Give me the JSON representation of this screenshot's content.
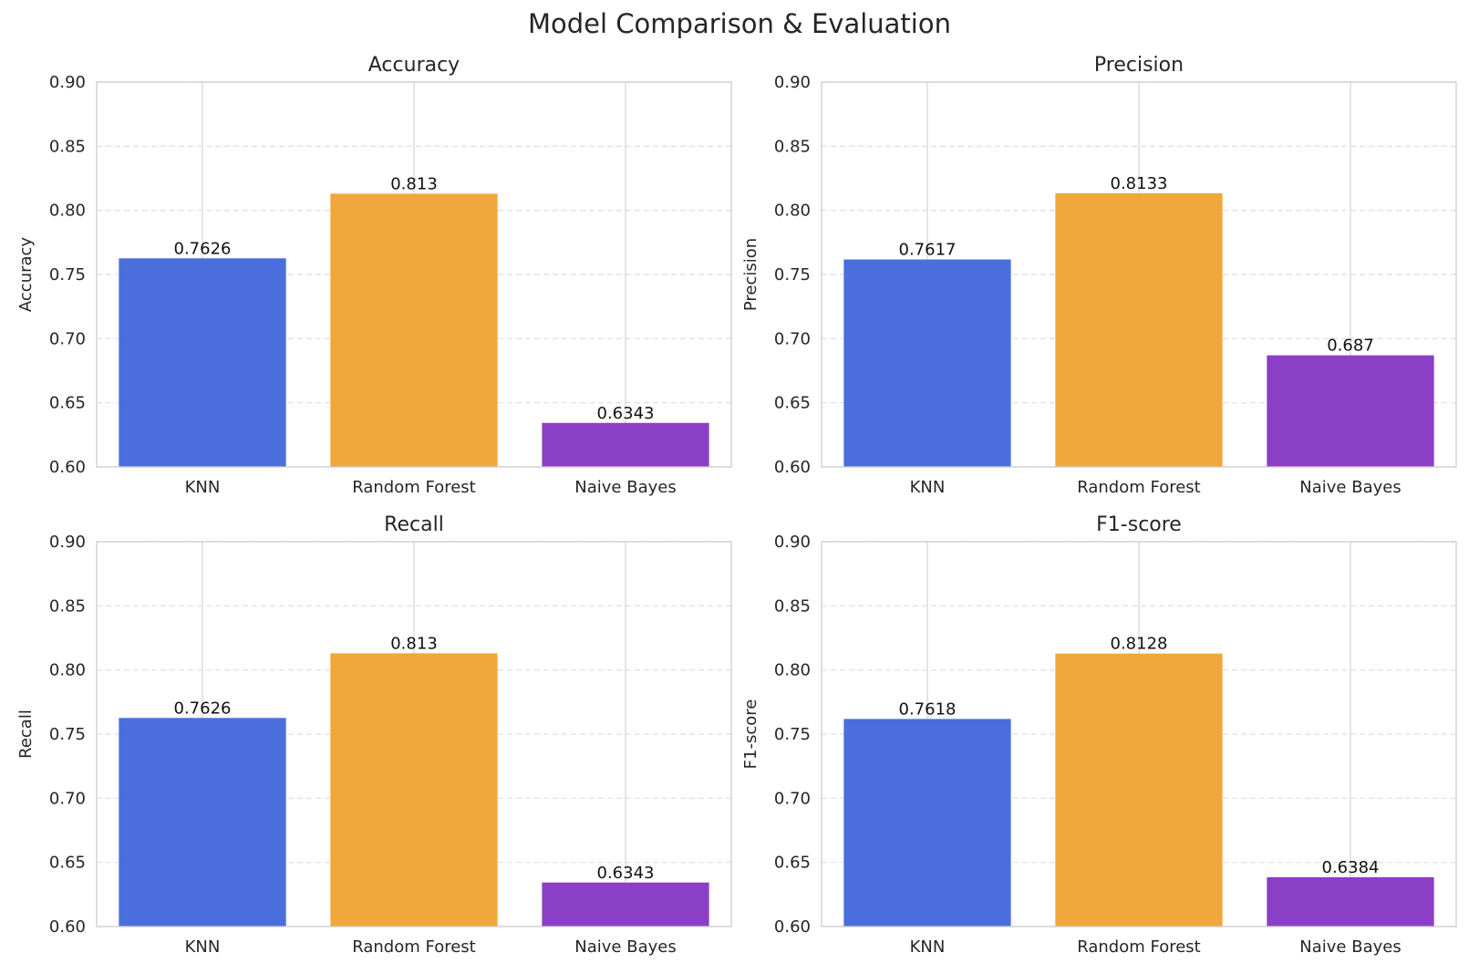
{
  "figure_title": "Model Comparison & Evaluation",
  "chart_data": [
    {
      "type": "bar",
      "title": "Accuracy",
      "ylabel": "Accuracy",
      "xlabel": "",
      "categories": [
        "KNN",
        "Random Forest",
        "Naive Bayes"
      ],
      "values": [
        0.7626,
        0.813,
        0.6343
      ],
      "value_labels": [
        "0.7626",
        "0.813",
        "0.6343"
      ],
      "ylim": [
        0.6,
        0.9
      ],
      "yticks": [
        "0.60",
        "0.65",
        "0.70",
        "0.75",
        "0.80",
        "0.85",
        "0.90"
      ],
      "grid": true,
      "colors": [
        "#4a6fdc",
        "#f0a83c",
        "#8b3fc6"
      ]
    },
    {
      "type": "bar",
      "title": "Precision",
      "ylabel": "Precision",
      "xlabel": "",
      "categories": [
        "KNN",
        "Random Forest",
        "Naive Bayes"
      ],
      "values": [
        0.7617,
        0.8133,
        0.687
      ],
      "value_labels": [
        "0.7617",
        "0.8133",
        "0.687"
      ],
      "ylim": [
        0.6,
        0.9
      ],
      "yticks": [
        "0.60",
        "0.65",
        "0.70",
        "0.75",
        "0.80",
        "0.85",
        "0.90"
      ],
      "grid": true,
      "colors": [
        "#4a6fdc",
        "#f0a83c",
        "#8b3fc6"
      ]
    },
    {
      "type": "bar",
      "title": "Recall",
      "ylabel": "Recall",
      "xlabel": "",
      "categories": [
        "KNN",
        "Random Forest",
        "Naive Bayes"
      ],
      "values": [
        0.7626,
        0.813,
        0.6343
      ],
      "value_labels": [
        "0.7626",
        "0.813",
        "0.6343"
      ],
      "ylim": [
        0.6,
        0.9
      ],
      "yticks": [
        "0.60",
        "0.65",
        "0.70",
        "0.75",
        "0.80",
        "0.85",
        "0.90"
      ],
      "grid": true,
      "colors": [
        "#4a6fdc",
        "#f0a83c",
        "#8b3fc6"
      ]
    },
    {
      "type": "bar",
      "title": "F1-score",
      "ylabel": "F1-score",
      "xlabel": "",
      "categories": [
        "KNN",
        "Random Forest",
        "Naive Bayes"
      ],
      "values": [
        0.7618,
        0.8128,
        0.6384
      ],
      "value_labels": [
        "0.7618",
        "0.8128",
        "0.6384"
      ],
      "ylim": [
        0.6,
        0.9
      ],
      "yticks": [
        "0.60",
        "0.65",
        "0.70",
        "0.75",
        "0.80",
        "0.85",
        "0.90"
      ],
      "grid": true,
      "colors": [
        "#4a6fdc",
        "#f0a83c",
        "#8b3fc6"
      ]
    }
  ]
}
